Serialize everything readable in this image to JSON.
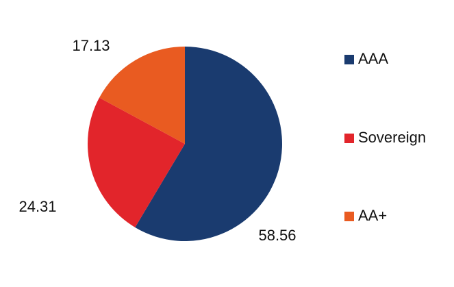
{
  "chart_data": {
    "type": "pie",
    "categories": [
      "AAA",
      "Sovereign",
      "AA+"
    ],
    "values": [
      58.56,
      24.31,
      17.13
    ],
    "colors": [
      "#1a3b6f",
      "#e2252b",
      "#e95b21"
    ],
    "legend": "right"
  }
}
